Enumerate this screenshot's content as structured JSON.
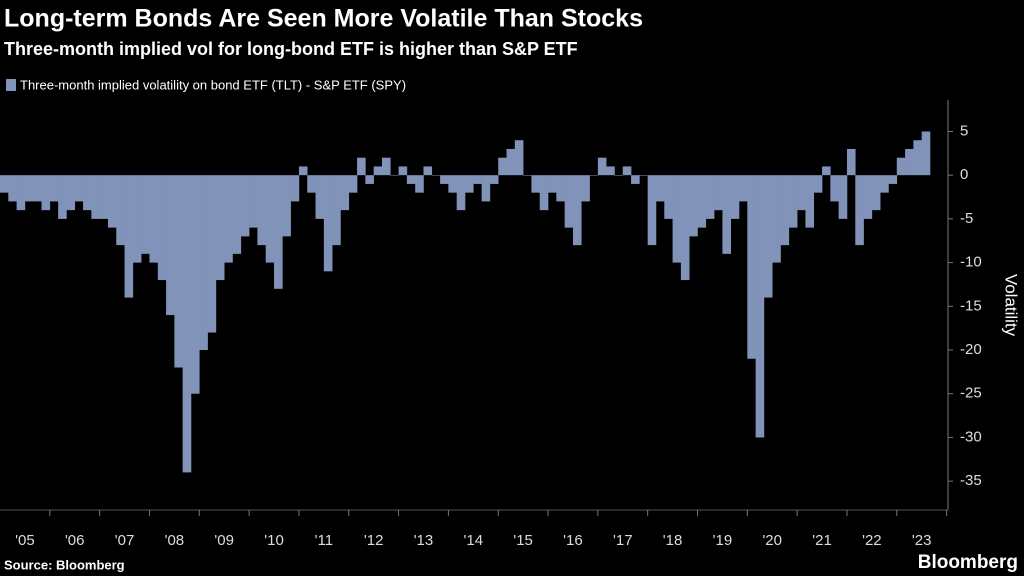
{
  "chart_data": {
    "type": "bar",
    "title": "Long-term Bonds Are Seen More Volatile Than Stocks",
    "subtitle": "Three-month implied vol for long-bond ETF is higher than S&P ETF",
    "y_label": "Volatility",
    "source": "Source: Bloomberg",
    "logo": "Bloomberg",
    "categories": [
      null,
      null,
      null,
      "'05",
      null,
      null,
      null,
      null,
      null,
      "'06",
      null,
      null,
      null,
      null,
      null,
      "'07",
      null,
      null,
      null,
      null,
      null,
      "'08",
      null,
      null,
      null,
      null,
      null,
      "'09",
      null,
      null,
      null,
      null,
      null,
      "'10",
      null,
      null,
      null,
      null,
      null,
      "'11",
      null,
      null,
      null,
      null,
      null,
      "'12",
      null,
      null,
      null,
      null,
      null,
      "'13",
      null,
      null,
      null,
      null,
      null,
      "'14",
      null,
      null,
      null,
      null,
      null,
      "'15",
      null,
      null,
      null,
      null,
      null,
      "'16",
      null,
      null,
      null,
      null,
      null,
      "'17",
      null,
      null,
      null,
      null,
      null,
      "'18",
      null,
      null,
      null,
      null,
      null,
      "'19",
      null,
      null,
      null,
      null,
      null,
      "'20",
      null,
      null,
      null,
      null,
      null,
      "'21",
      null,
      null,
      null,
      null,
      null,
      "'22",
      null,
      null,
      null,
      null,
      null,
      "'23"
    ],
    "series": [
      {
        "name": "Three-month implied volatility on bond ETF (TLT) - S&P ETF (SPY)",
        "color": "#8193b8",
        "values": [
          -2,
          -3,
          -4,
          -3,
          -3,
          -4,
          -3,
          -5,
          -4,
          -3,
          -4,
          -5,
          -5,
          -6,
          -8,
          -14,
          -10,
          -9,
          -10,
          -12,
          -16,
          -22,
          -34,
          -25,
          -20,
          -18,
          -12,
          -10,
          -9,
          -7,
          -6,
          -8,
          -10,
          -13,
          -7,
          -3,
          1,
          -2,
          -5,
          -11,
          -8,
          -4,
          -2,
          2,
          -1,
          1,
          2,
          0,
          1,
          -1,
          -2,
          1,
          0,
          -1,
          -2,
          -4,
          -2,
          -1,
          -3,
          -1,
          2,
          3,
          4,
          0,
          -2,
          -4,
          -2,
          -3,
          -6,
          -8,
          -3,
          0,
          2,
          1,
          0,
          1,
          -1,
          0,
          -8,
          -3,
          -5,
          -10,
          -12,
          -7,
          -6,
          -5,
          -4,
          -9,
          -5,
          -3,
          -21,
          -30,
          -14,
          -10,
          -8,
          -6,
          -4,
          -6,
          -2,
          1,
          -3,
          -5,
          3,
          -8,
          -5,
          -4,
          -2,
          -1,
          2,
          3,
          4,
          5
        ]
      }
    ],
    "ylim": [
      -38.3,
      8.6
    ],
    "yticks": [
      5,
      0,
      -5,
      -10,
      -15,
      -20,
      -25,
      -30,
      -35
    ]
  }
}
